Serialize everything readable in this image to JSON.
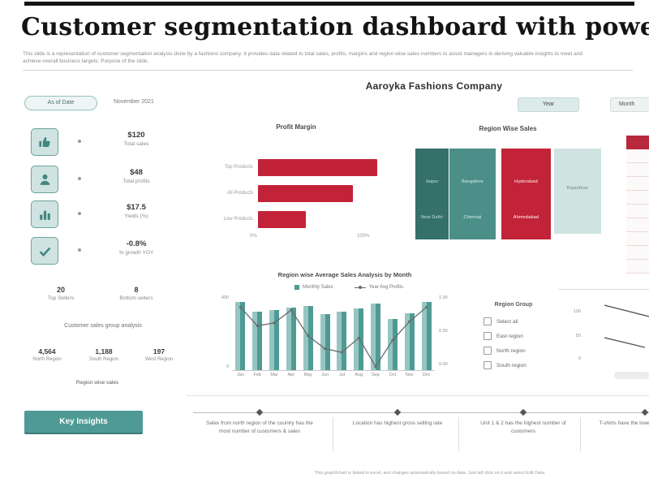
{
  "slide": {
    "title": "Customer segmentation dashboard with power bi",
    "subtitle_line1": "This slide is a representation of customer segmentation analysis done by a fashions company. It provides data related to total sales, profits, margins and region wise sales numbers to assist managers in deriving valuable insights to meet and",
    "subtitle_line2": "achieve overall business targets. Purpose of the slide.",
    "company": "Aaroyka Fashions Company",
    "footer_note": "This graph/chart is linked to excel, and changes automatically based on data. Just left click on it and select Edit Data."
  },
  "filters": {
    "as_of_label": "As of Date",
    "as_of_value": "November 2021",
    "period_buttons": [
      {
        "label": "Year"
      },
      {
        "label": "Month"
      }
    ]
  },
  "kpis": [
    {
      "icon": "thumbs-up-icon",
      "value": "$120",
      "label": "Total sales"
    },
    {
      "icon": "user-icon",
      "value": "$48",
      "label": "Total profits"
    },
    {
      "icon": "bar-chart-icon",
      "value": "$17.5",
      "label": "Yields (%)"
    },
    {
      "icon": "check-icon",
      "value": "-0.8%",
      "label": "% growth YOY"
    }
  ],
  "seller_stats": {
    "top": {
      "value": "20",
      "label": "Top Sellers"
    },
    "bottom": {
      "value": "8",
      "label": "Bottom sellers"
    }
  },
  "customer_group": {
    "title": "Customer sales group analysis",
    "regions": [
      {
        "value": "4,564",
        "label": "North Region"
      },
      {
        "value": "1,188",
        "label": "South Region"
      },
      {
        "value": "197",
        "label": "West Region"
      }
    ],
    "note": "Region wise sales"
  },
  "key_insights_label": "Key Insights",
  "region_group": {
    "title": "Region Group",
    "items": [
      "Select all",
      "East region",
      "North region",
      "South region"
    ]
  },
  "insights": [
    "Sales from north region of the country has the most number of customers & sales",
    "Location has highest gross selling rate",
    "Unit 1 & 2 has the highest number of customers",
    "T-shirts have the lowest seasonal sales"
  ],
  "colors": {
    "teal": "#4f9a94",
    "teal_dark": "#35706b",
    "teal_light": "#cfe3e0",
    "red": "#c32338",
    "line_gray": "#6b6b6b"
  },
  "chart_data": [
    {
      "id": "profit_margin",
      "type": "bar",
      "orientation": "horizontal",
      "title": "Profit Margin",
      "categories": [
        "Top Products",
        "All Products",
        "Low Products"
      ],
      "values": [
        97,
        77,
        39
      ],
      "xlim": [
        0,
        100
      ],
      "x_tick_labels": [
        "0%",
        "100%"
      ],
      "bar_color": "#c32338"
    },
    {
      "id": "region_wise_sales",
      "type": "heatmap",
      "subtype": "treemap",
      "title": "Region Wise Sales",
      "columns": [
        {
          "color": "#35706b",
          "width": 41,
          "text_color": "#cfe7e4",
          "labels": [
            "Jaipur",
            "New Delhi"
          ]
        },
        {
          "color": "#4c8f89",
          "width": 57,
          "text_color": "#dff0ee",
          "labels": [
            "Bangalore",
            "Chennai"
          ]
        },
        {
          "color": "#c32338",
          "width": 61,
          "text_color": "#ffffff",
          "labels": [
            "Hyderabad",
            "Ahmedabad"
          ]
        },
        {
          "color": "#cfe3e1",
          "width": 58,
          "text_color": "#5f8e89",
          "labels": [
            "Rajasthan"
          ]
        }
      ]
    },
    {
      "id": "monthly_sales",
      "type": "bar",
      "subtype": "bar+line",
      "title": "Region wise Average Sales Analysis by Month",
      "categories": [
        "Jan",
        "Feb",
        "Mar",
        "Apr",
        "May",
        "Jun",
        "Jul",
        "Aug",
        "Sep",
        "Oct",
        "Nov",
        "Dec"
      ],
      "series": [
        {
          "name": "Monthly Sales",
          "type": "bar",
          "values": [
            95,
            82,
            84,
            88,
            90,
            78,
            82,
            86,
            93,
            72,
            80,
            96
          ]
        },
        {
          "name": "Year Avg Profits",
          "type": "line",
          "values": [
            88,
            62,
            66,
            84,
            48,
            30,
            25,
            45,
            5,
            42,
            68,
            88
          ]
        }
      ],
      "left_axis_labels": [
        "400",
        "0"
      ],
      "right_axis_labels": [
        "1.00",
        "0.50",
        "0.00"
      ],
      "bar_color": "#4f9a94",
      "line_color": "#6b6b6b",
      "legend_position": "top"
    },
    {
      "id": "right_mini_lines",
      "type": "line",
      "clipped": true,
      "y_tick_labels": [
        "100",
        "50",
        "0"
      ],
      "series": [
        {
          "name": "",
          "values": [
            90,
            72
          ]
        },
        {
          "name": "",
          "values": [
            42,
            28
          ]
        }
      ]
    }
  ]
}
